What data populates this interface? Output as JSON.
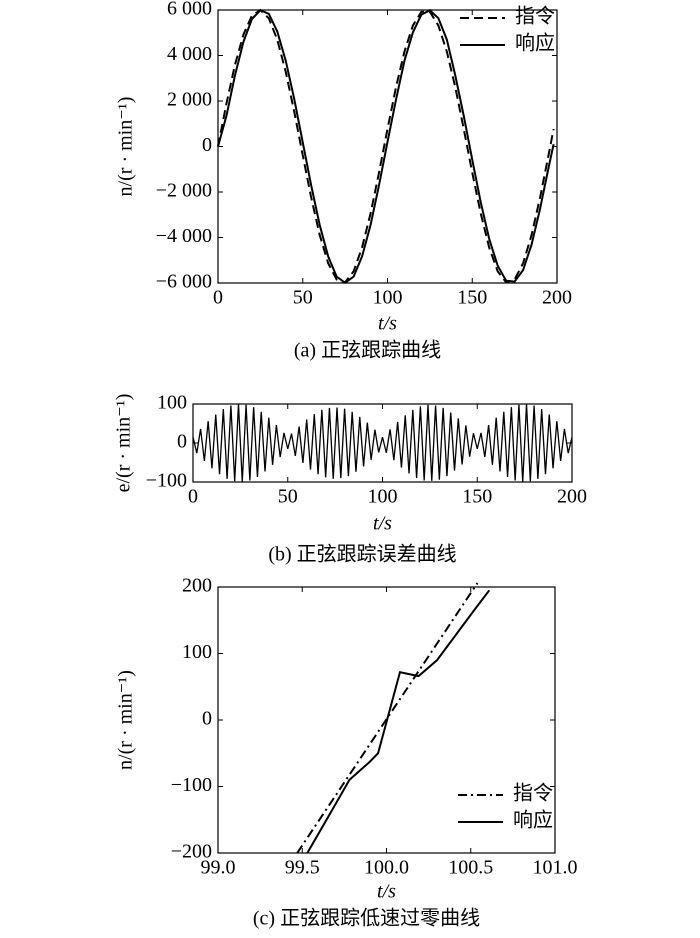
{
  "chart_data": [
    {
      "type": "line",
      "title": "(a) 正弦跟踪曲线",
      "xlabel": "t/s",
      "ylabel": "n/(r · min⁻¹)",
      "legend": "upper right",
      "xlim": [
        0,
        200
      ],
      "xticks": [
        0,
        50,
        100,
        150,
        200
      ],
      "ylim": [
        -6000,
        6000
      ],
      "yticks": [
        {
          "value": -6000,
          "label": "−6 000"
        },
        {
          "value": -4000,
          "label": "−4 000"
        },
        {
          "value": -2000,
          "label": "−2 000"
        },
        0,
        {
          "value": 2000,
          "label": "2 000"
        },
        {
          "value": 4000,
          "label": "4 000"
        },
        {
          "value": 6000,
          "label": "6 000"
        }
      ],
      "x": [
        0,
        5,
        10,
        15,
        20,
        25,
        30,
        35,
        40,
        45,
        50,
        55,
        60,
        65,
        70,
        75,
        80,
        85,
        90,
        95,
        100,
        105,
        110,
        115,
        120,
        125,
        130,
        135,
        140,
        145,
        150,
        155,
        160,
        165,
        170,
        175,
        180,
        185,
        190,
        195,
        198
      ],
      "series": [
        {
          "name": "指令",
          "color": "#000000",
          "linestyle": "dashed",
          "values": [
            0,
            1891,
            3589,
            4921,
            5752,
            5997,
            5631,
            4689,
            3274,
            1522,
            -384,
            -2251,
            -3889,
            -5131,
            -5849,
            -5972,
            -5486,
            -4441,
            -2944,
            -1147,
            767,
            2603,
            4174,
            5320,
            5923,
            5923,
            5320,
            4174,
            2603,
            767,
            -1147,
            -2944,
            -4441,
            -5486,
            -5972,
            -5849,
            -5131,
            -3889,
            -2251,
            -384,
            767
          ]
        },
        {
          "name": "响应",
          "color": "#000000",
          "linestyle": "solid",
          "values": [
            0,
            1350,
            3120,
            4600,
            5600,
            5990,
            5830,
            5050,
            3760,
            2080,
            180,
            -1720,
            -3450,
            -4830,
            -5720,
            -5990,
            -5720,
            -4830,
            -3450,
            -1700,
            200,
            2050,
            3770,
            5020,
            5800,
            5990,
            5640,
            4700,
            3120,
            1340,
            -580,
            -2450,
            -4060,
            -5240,
            -5900,
            -5940,
            -5430,
            -4310,
            -2740,
            -940,
            100
          ]
        }
      ]
    },
    {
      "type": "line",
      "title": "(b) 正弦跟踪误差曲线",
      "xlabel": "t/s",
      "ylabel": "e/(r · min⁻¹)",
      "xlim": [
        0,
        200
      ],
      "xticks": [
        0,
        50,
        100,
        150,
        200
      ],
      "ylim": [
        -100,
        100
      ],
      "yticks": [
        {
          "value": -100,
          "label": "−100"
        },
        0,
        100
      ],
      "color": "#000000",
      "x": [
        0,
        2,
        4,
        6,
        8,
        10,
        12,
        14,
        16,
        18,
        20,
        22,
        24,
        26,
        28,
        30,
        32,
        34,
        36,
        38,
        40,
        42,
        44,
        46,
        48,
        50,
        52,
        54,
        56,
        58,
        60,
        62,
        64,
        66,
        68,
        70,
        72,
        74,
        76,
        78,
        80,
        82,
        84,
        86,
        88,
        90,
        92,
        94,
        96,
        98,
        100,
        102,
        104,
        106,
        108,
        110,
        112,
        114,
        116,
        118,
        120,
        122,
        124,
        126,
        128,
        130,
        132,
        134,
        136,
        138,
        140,
        142,
        144,
        146,
        148,
        150,
        152,
        154,
        156,
        158,
        160,
        162,
        164,
        166,
        168,
        170,
        172,
        174,
        176,
        178,
        180,
        182,
        184,
        186,
        188,
        190,
        192,
        194,
        196,
        198,
        200
      ],
      "values": [
        15,
        -26,
        36,
        -46,
        56,
        -65,
        73,
        -80,
        87,
        -92,
        96,
        -98,
        100,
        -100,
        98,
        -96,
        92,
        -87,
        80,
        -73,
        65,
        -56,
        46,
        -36,
        26,
        -15,
        24,
        -33,
        42,
        -51,
        60,
        -68,
        74,
        -80,
        85,
        -88,
        90,
        -92,
        91,
        -90,
        88,
        -85,
        80,
        -74,
        67,
        -60,
        52,
        -43,
        34,
        -24,
        15,
        -25,
        35,
        -44,
        54,
        -63,
        71,
        -78,
        85,
        -90,
        94,
        -96,
        98,
        -97,
        96,
        -94,
        90,
        -85,
        78,
        -71,
        63,
        -55,
        45,
        -35,
        25,
        -15,
        26,
        -36,
        46,
        -56,
        65,
        -73,
        80,
        -87,
        92,
        -96,
        98,
        -100,
        100,
        -98,
        96,
        -92,
        87,
        -80,
        73,
        -65,
        56,
        -46,
        36,
        -26,
        15
      ]
    },
    {
      "type": "line",
      "title": "(c) 正弦跟踪低速过零曲线",
      "xlabel": "t/s",
      "ylabel": "n/(r · min⁻¹)",
      "legend": "lower right",
      "xlim": [
        99,
        101
      ],
      "xticks": [
        {
          "value": 99,
          "label": "99.0"
        },
        99.5,
        {
          "value": 100,
          "label": "100.0"
        },
        100.5,
        {
          "value": 101,
          "label": "101.0"
        }
      ],
      "ylim": [
        -200,
        200
      ],
      "yticks": [
        {
          "value": -200,
          "label": "−200"
        },
        {
          "value": -100,
          "label": "−100"
        },
        0,
        100,
        200
      ],
      "series": [
        {
          "name": "指令",
          "color": "#000000",
          "linestyle": "dashdot",
          "x": [
            99.47,
            100.54
          ],
          "values": [
            -200,
            206
          ]
        },
        {
          "name": "响应",
          "color": "#000000",
          "linestyle": "solid",
          "x": [
            99.53,
            99.66,
            99.78,
            99.9,
            99.95,
            100.08,
            100.19,
            100.3,
            100.52,
            100.61
          ],
          "values": [
            -200,
            -143,
            -90,
            -63,
            -50,
            72,
            66,
            90,
            165,
            195
          ]
        }
      ]
    }
  ]
}
